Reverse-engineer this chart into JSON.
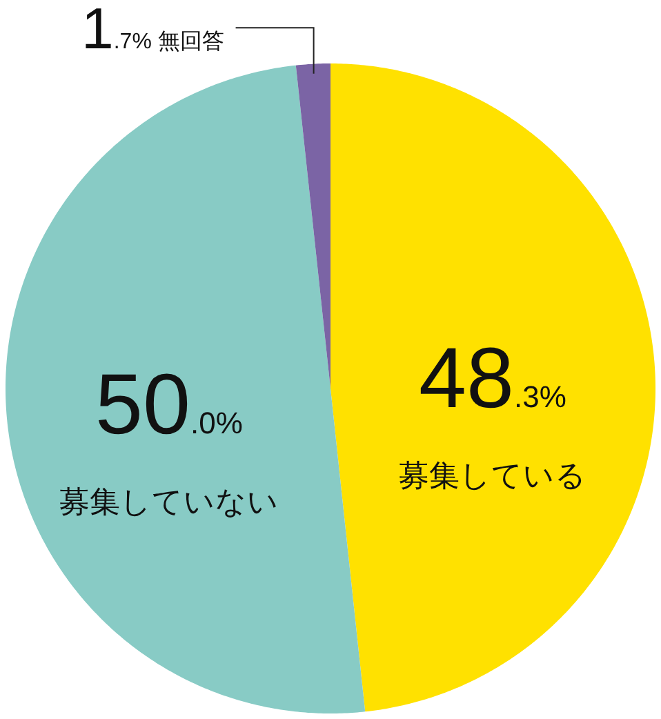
{
  "chart_data": {
    "type": "pie",
    "categories": [
      "募集している",
      "募集していない",
      "無回答"
    ],
    "values": [
      48.3,
      50.0,
      1.7
    ],
    "colors": [
      "#ffe100",
      "#88cbc5",
      "#7b64a5"
    ],
    "value_labels": [
      "48.3%",
      "50.0%",
      "1.7%"
    ],
    "legend": false
  }
}
